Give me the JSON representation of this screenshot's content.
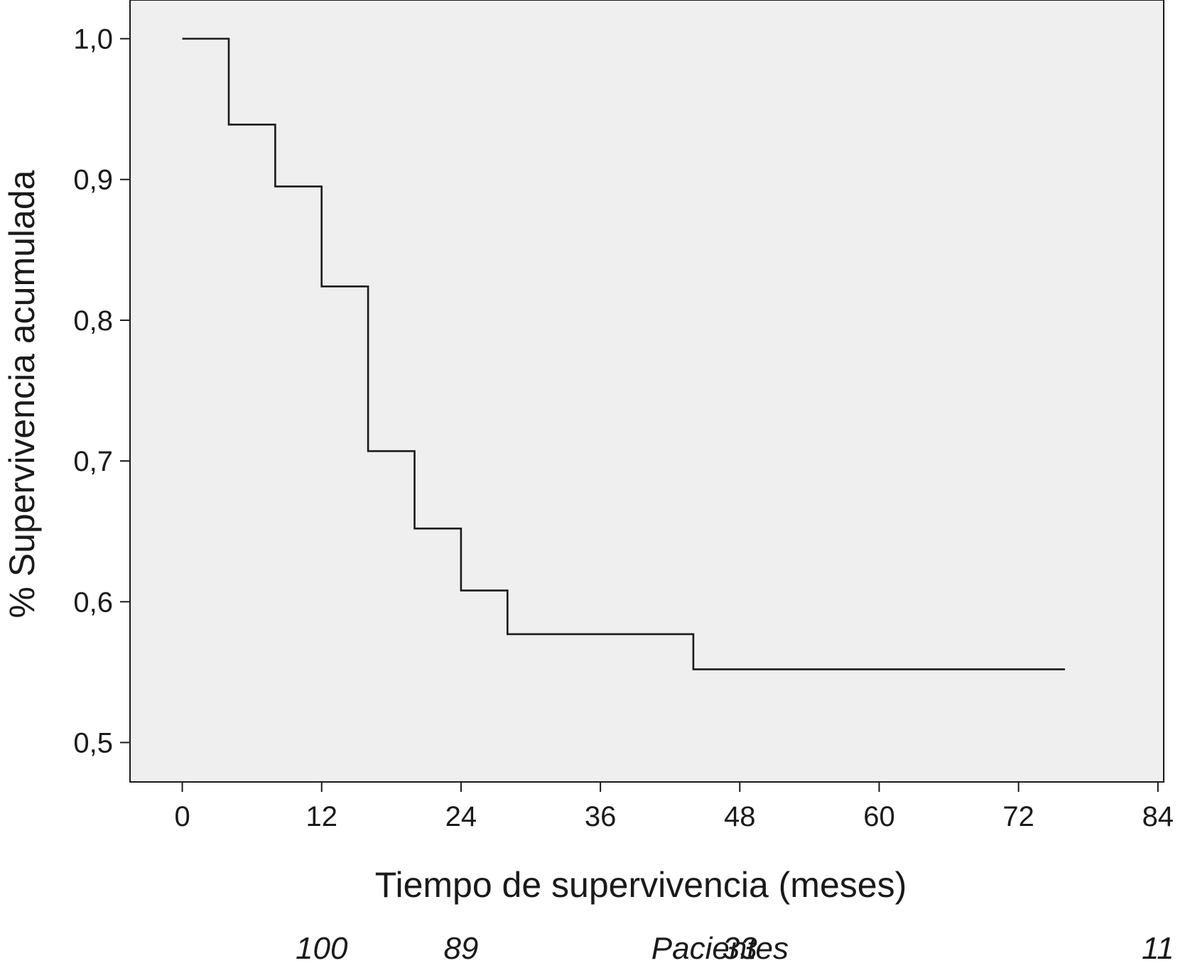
{
  "chart_data": {
    "type": "line",
    "subtype": "kaplan-meier-step",
    "title": "",
    "xlabel": "Tiempo de supervivencia (meses)",
    "ylabel": "% Supervivencia acumulada",
    "xlim": [
      -4.5,
      84.5
    ],
    "ylim": [
      0.472,
      1.0275
    ],
    "x_ticks": [
      0,
      12,
      24,
      36,
      48,
      60,
      72,
      84
    ],
    "x_tick_labels": [
      "0",
      "12",
      "24",
      "36",
      "48",
      "60",
      "72",
      "84"
    ],
    "y_ticks": [
      0.5,
      0.6,
      0.7,
      0.8,
      0.9,
      1.0
    ],
    "y_tick_labels": [
      "0,5",
      "0,6",
      "0,7",
      "0,8",
      "0,9",
      "1,0"
    ],
    "grid": false,
    "plot_background": "#efefef",
    "line_color": "#1a1a1a",
    "series": [
      {
        "x": [
          0,
          4,
          8,
          12,
          16,
          20,
          24,
          28,
          44,
          76
        ],
        "y": [
          1.0,
          0.939,
          0.895,
          0.824,
          0.707,
          0.652,
          0.608,
          0.577,
          0.552,
          0.552
        ]
      }
    ],
    "at_risk": {
      "label": "Pacientes",
      "x": [
        12,
        24,
        48,
        84
      ],
      "values": [
        "100",
        "89",
        "33",
        "11"
      ]
    }
  }
}
